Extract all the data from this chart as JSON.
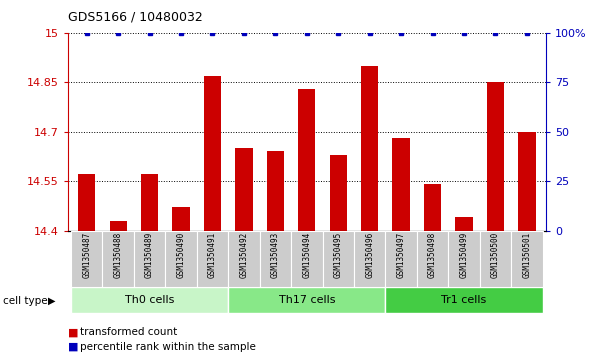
{
  "title": "GDS5166 / 10480032",
  "samples": [
    "GSM1350487",
    "GSM1350488",
    "GSM1350489",
    "GSM1350490",
    "GSM1350491",
    "GSM1350492",
    "GSM1350493",
    "GSM1350494",
    "GSM1350495",
    "GSM1350496",
    "GSM1350497",
    "GSM1350498",
    "GSM1350499",
    "GSM1350500",
    "GSM1350501"
  ],
  "red_values": [
    14.57,
    14.43,
    14.57,
    14.47,
    14.87,
    14.65,
    14.64,
    14.83,
    14.63,
    14.9,
    14.68,
    14.54,
    14.44,
    14.85,
    14.7
  ],
  "groups": [
    {
      "label": "Th0 cells",
      "start": 0,
      "end": 4,
      "color": "#c8f5c8"
    },
    {
      "label": "Th17 cells",
      "start": 5,
      "end": 9,
      "color": "#88e888"
    },
    {
      "label": "Tr1 cells",
      "start": 10,
      "end": 14,
      "color": "#44cc44"
    }
  ],
  "ylim_left": [
    14.4,
    15.0
  ],
  "ylim_right": [
    0,
    100
  ],
  "yticks_left": [
    14.4,
    14.55,
    14.7,
    14.85,
    15.0
  ],
  "ytick_labels_left": [
    "14.4",
    "14.55",
    "14.7",
    "14.85",
    "15"
  ],
  "yticks_right": [
    0,
    25,
    50,
    75,
    100
  ],
  "ytick_labels_right": [
    "0",
    "25",
    "50",
    "75",
    "100%"
  ],
  "bar_color": "#cc0000",
  "dot_color": "#0000bb",
  "bg_color": "#cccccc",
  "legend_red": "transformed count",
  "legend_blue": "percentile rank within the sample",
  "cell_type_label": "cell type"
}
